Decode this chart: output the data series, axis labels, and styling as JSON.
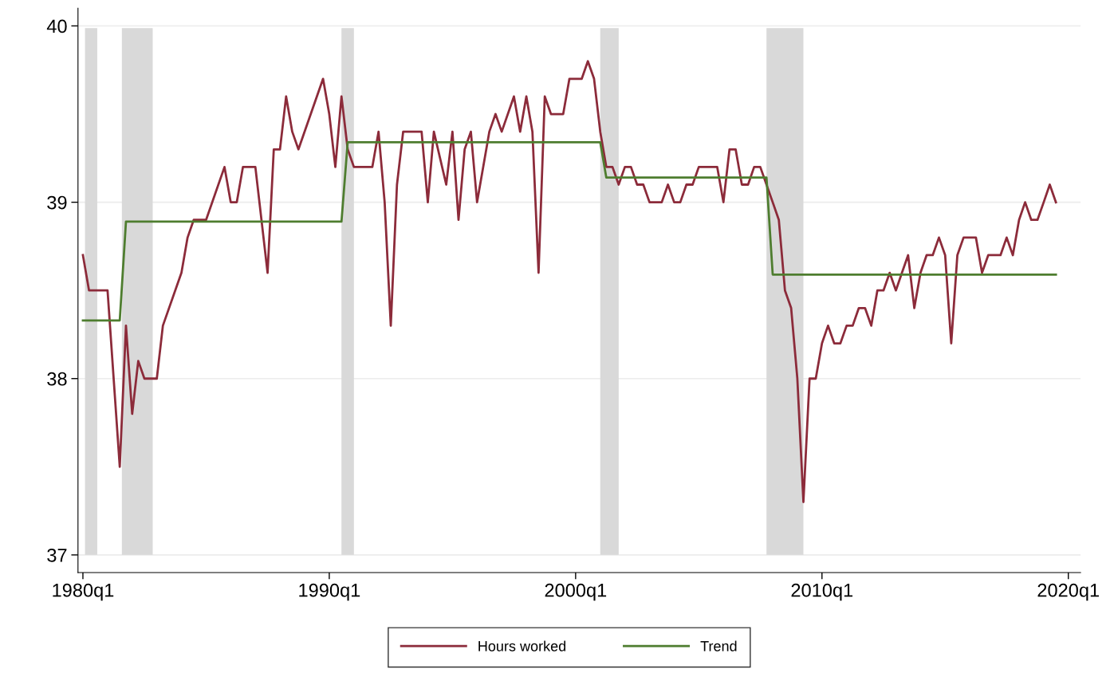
{
  "chart_data": {
    "type": "line",
    "xlim": [
      "1979-10-20",
      "2020-07-01"
    ],
    "ylim": [
      36.9,
      40.1
    ],
    "xticks": [
      {
        "value": "1980-01",
        "label": "1980q1"
      },
      {
        "value": "1990-01",
        "label": "1990q1"
      },
      {
        "value": "2000-01",
        "label": "2000q1"
      },
      {
        "value": "2010-01",
        "label": "2010q1"
      },
      {
        "value": "2020-01",
        "label": "2020q1"
      }
    ],
    "yticks": [
      37,
      38,
      39,
      40
    ],
    "grid": "y",
    "legend": "bottom",
    "marker": "none",
    "line_style": "solid",
    "bands": [
      {
        "axis": "x",
        "from": "1980-02",
        "to": "1980-08",
        "color": "#d9d9d9"
      },
      {
        "axis": "x",
        "from": "1981-08",
        "to": "1982-11",
        "color": "#d9d9d9"
      },
      {
        "axis": "x",
        "from": "1990-07",
        "to": "1991-01",
        "color": "#d9d9d9"
      },
      {
        "axis": "x",
        "from": "2001-01",
        "to": "2001-10",
        "color": "#d9d9d9"
      },
      {
        "axis": "x",
        "from": "2007-10",
        "to": "2009-04",
        "color": "#d9d9d9"
      }
    ],
    "series": [
      {
        "name": "Hours worked",
        "color": "#8c2b3a",
        "x": [
          "1980-01",
          "1980-04",
          "1981-01",
          "1981-07",
          "1981-10",
          "1982-01",
          "1982-04",
          "1982-07",
          "1983-01",
          "1983-04",
          "1984-01",
          "1984-04",
          "1984-07",
          "1985-01",
          "1985-10",
          "1986-01",
          "1986-04",
          "1986-07",
          "1987-01",
          "1987-07",
          "1987-10",
          "1988-01",
          "1988-04",
          "1988-07",
          "1988-10",
          "1989-10",
          "1990-01",
          "1990-04",
          "1990-07",
          "1990-10",
          "1991-01",
          "1991-10",
          "1992-01",
          "1992-04",
          "1992-07",
          "1992-10",
          "1993-01",
          "1993-10",
          "1994-01",
          "1994-04",
          "1994-10",
          "1995-01",
          "1995-04",
          "1995-07",
          "1995-10",
          "1996-01",
          "1996-07",
          "1996-10",
          "1997-01",
          "1997-07",
          "1997-10",
          "1998-01",
          "1998-04",
          "1998-07",
          "1998-10",
          "1999-01",
          "1999-07",
          "1999-10",
          "2000-04",
          "2000-07",
          "2000-10",
          "2001-01",
          "2001-04",
          "2001-07",
          "2001-10",
          "2002-01",
          "2002-04",
          "2002-07",
          "2002-10",
          "2003-01",
          "2003-07",
          "2003-10",
          "2004-01",
          "2004-04",
          "2004-07",
          "2004-10",
          "2005-01",
          "2005-10",
          "2006-01",
          "2006-04",
          "2006-07",
          "2006-10",
          "2007-01",
          "2007-04",
          "2007-07",
          "2007-10",
          "2008-01",
          "2008-04",
          "2008-07",
          "2008-10",
          "2009-01",
          "2009-04",
          "2009-07",
          "2009-10",
          "2010-01",
          "2010-04",
          "2010-07",
          "2010-10",
          "2011-01",
          "2011-04",
          "2011-07",
          "2011-10",
          "2012-01",
          "2012-04",
          "2012-07",
          "2012-10",
          "2013-01",
          "2013-04",
          "2013-07",
          "2013-10",
          "2014-01",
          "2014-04",
          "2014-07",
          "2014-10",
          "2015-01",
          "2015-04",
          "2015-07",
          "2015-10",
          "2016-04",
          "2016-07",
          "2016-10",
          "2017-04",
          "2017-07",
          "2017-10",
          "2018-01",
          "2018-04",
          "2018-07",
          "2018-10",
          "2019-01",
          "2019-04",
          "2019-07"
        ],
        "values": [
          38.7,
          38.5,
          38.5,
          37.5,
          38.3,
          37.8,
          38.1,
          38.0,
          38.0,
          38.3,
          38.6,
          38.8,
          38.9,
          38.9,
          39.2,
          39.0,
          39.0,
          39.2,
          39.2,
          38.6,
          39.3,
          39.3,
          39.6,
          39.4,
          39.3,
          39.7,
          39.5,
          39.2,
          39.6,
          39.3,
          39.2,
          39.2,
          39.4,
          39.0,
          38.3,
          39.1,
          39.4,
          39.4,
          39.0,
          39.4,
          39.1,
          39.4,
          38.9,
          39.3,
          39.4,
          39.0,
          39.4,
          39.5,
          39.4,
          39.6,
          39.4,
          39.6,
          39.4,
          38.6,
          39.6,
          39.5,
          39.5,
          39.7,
          39.7,
          39.8,
          39.7,
          39.4,
          39.2,
          39.2,
          39.1,
          39.2,
          39.2,
          39.1,
          39.1,
          39.0,
          39.0,
          39.1,
          39.0,
          39.0,
          39.1,
          39.1,
          39.2,
          39.2,
          39.0,
          39.3,
          39.3,
          39.1,
          39.1,
          39.2,
          39.2,
          39.1,
          39.0,
          38.9,
          38.5,
          38.4,
          38.0,
          37.3,
          38.0,
          38.0,
          38.2,
          38.3,
          38.2,
          38.2,
          38.3,
          38.3,
          38.4,
          38.4,
          38.3,
          38.5,
          38.5,
          38.6,
          38.5,
          38.6,
          38.7,
          38.4,
          38.6,
          38.7,
          38.7,
          38.8,
          38.7,
          38.2,
          38.7,
          38.8,
          38.8,
          38.6,
          38.7,
          38.7,
          38.8,
          38.7,
          38.9,
          39.0,
          38.9,
          38.9,
          39.0,
          39.1,
          39.0
        ]
      },
      {
        "name": "Trend",
        "color": "#4e7d2f",
        "x": [
          "1980-01",
          "1981-07",
          "1981-10",
          "1990-07",
          "1990-10",
          "2001-01",
          "2001-04",
          "2007-10",
          "2008-01",
          "2019-07"
        ],
        "values": [
          38.33,
          38.33,
          38.89,
          38.89,
          39.34,
          39.34,
          39.14,
          39.14,
          38.59,
          38.59
        ]
      }
    ]
  }
}
